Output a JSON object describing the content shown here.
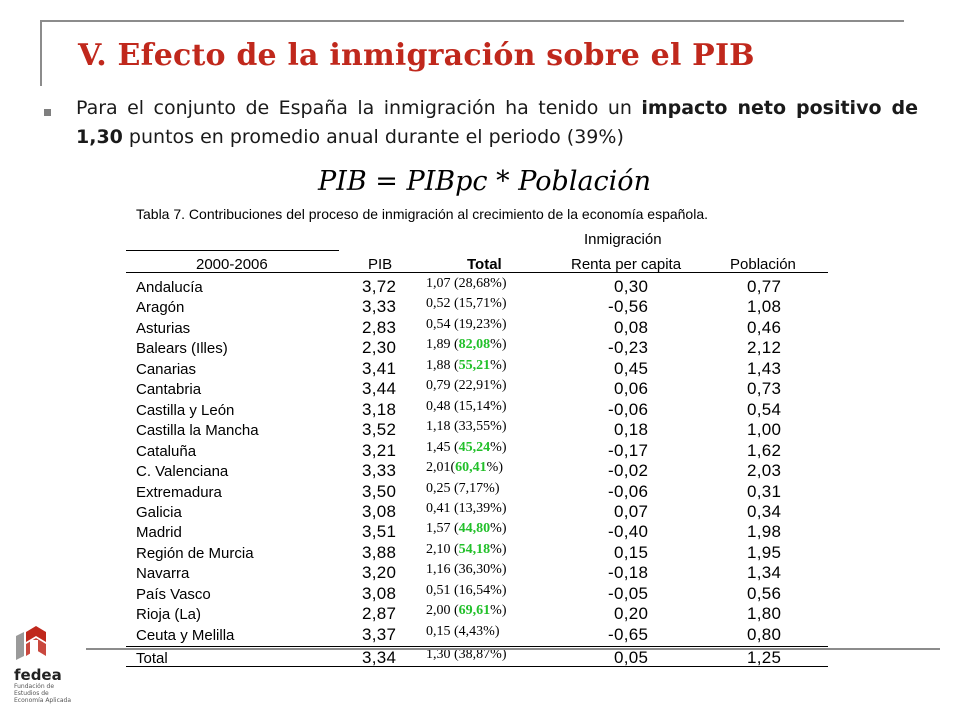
{
  "slide": {
    "title": "V. Efecto de la inmigración sobre el PIB",
    "bullet_pre": "Para el conjunto de España la inmigración ha tenido un ",
    "bullet_bold": "impacto neto positivo de 1,30",
    "bullet_post": " puntos en promedio anual durante el periodo (39%)",
    "formula": "PIB = PIBpc * Población"
  },
  "table": {
    "caption": "Tabla 7. Contribuciones del proceso de inmigración al crecimiento de la economía española.",
    "group_header": "Inmigración",
    "headers": [
      "2000-2006",
      "PIB",
      "Total",
      "Renta per capita",
      "Población"
    ],
    "rows": [
      {
        "region": "Andalucía",
        "pib": "3,72",
        "total_val": "1,07",
        "total_pct": "28,68",
        "renta": "0,30",
        "poblacion": "0,77",
        "hl": false,
        "total_sep": " ("
      },
      {
        "region": "Aragón",
        "pib": "3,33",
        "total_val": "0,52",
        "total_pct": "15,71",
        "renta": "-0,56",
        "poblacion": "1,08",
        "hl": false,
        "total_sep": " ("
      },
      {
        "region": "Asturias",
        "pib": "2,83",
        "total_val": "0,54",
        "total_pct": "19,23",
        "renta": "0,08",
        "poblacion": "0,46",
        "hl": false,
        "total_sep": " ("
      },
      {
        "region": "Balears (Illes)",
        "pib": "2,30",
        "total_val": "1,89",
        "total_pct": "82,08",
        "renta": "-0,23",
        "poblacion": "2,12",
        "hl": true,
        "total_sep": " ("
      },
      {
        "region": "Canarias",
        "pib": "3,41",
        "total_val": "1,88",
        "total_pct": "55,21",
        "renta": "0,45",
        "poblacion": "1,43",
        "hl": true,
        "total_sep": " ("
      },
      {
        "region": "Cantabria",
        "pib": "3,44",
        "total_val": "0,79",
        "total_pct": "22,91",
        "renta": "0,06",
        "poblacion": "0,73",
        "hl": false,
        "total_sep": " ("
      },
      {
        "region": "Castilla y León",
        "pib": "3,18",
        "total_val": "0,48",
        "total_pct": "15,14",
        "renta": "-0,06",
        "poblacion": "0,54",
        "hl": false,
        "total_sep": " ("
      },
      {
        "region": "Castilla la Mancha",
        "pib": "3,52",
        "total_val": "1,18",
        "total_pct": "33,55",
        "renta": "0,18",
        "poblacion": "1,00",
        "hl": false,
        "total_sep": " ("
      },
      {
        "region": "Cataluña",
        "pib": "3,21",
        "total_val": "1,45",
        "total_pct": "45,24",
        "renta": "-0,17",
        "poblacion": "1,62",
        "hl": true,
        "total_sep": " ("
      },
      {
        "region": "C. Valenciana",
        "pib": "3,33",
        "total_val": "2,01",
        "total_pct": "60,41",
        "renta": "-0,02",
        "poblacion": "2,03",
        "hl": true,
        "total_sep": "("
      },
      {
        "region": "Extremadura",
        "pib": "3,50",
        "total_val": "0,25",
        "total_pct": "7,17",
        "renta": "-0,06",
        "poblacion": "0,31",
        "hl": false,
        "total_sep": " ("
      },
      {
        "region": "Galicia",
        "pib": "3,08",
        "total_val": "0,41",
        "total_pct": "13,39",
        "renta": "0,07",
        "poblacion": "0,34",
        "hl": false,
        "total_sep": " ("
      },
      {
        "region": "Madrid",
        "pib": "3,51",
        "total_val": "1,57",
        "total_pct": "44,80",
        "renta": "-0,40",
        "poblacion": "1,98",
        "hl": true,
        "total_sep": " ("
      },
      {
        "region": "Región de Murcia",
        "pib": "3,88",
        "total_val": "2,10",
        "total_pct": "54,18",
        "renta": "0,15",
        "poblacion": "1,95",
        "hl": true,
        "total_sep": " ("
      },
      {
        "region": "Navarra",
        "pib": "3,20",
        "total_val": "1,16",
        "total_pct": "36,30",
        "renta": "-0,18",
        "poblacion": "1,34",
        "hl": false,
        "total_sep": " ("
      },
      {
        "region": "País Vasco",
        "pib": "3,08",
        "total_val": "0,51",
        "total_pct": "16,54",
        "renta": "-0,05",
        "poblacion": "0,56",
        "hl": false,
        "total_sep": " ("
      },
      {
        "region": "Rioja (La)",
        "pib": "2,87",
        "total_val": "2,00",
        "total_pct": "69,61",
        "renta": "0,20",
        "poblacion": "1,80",
        "hl": true,
        "total_sep": " ("
      },
      {
        "region": "Ceuta y Melilla",
        "pib": "3,37",
        "total_val": "0,15",
        "total_pct": "4,43",
        "renta": "-0,65",
        "poblacion": "0,80",
        "hl": false,
        "total_sep": " ("
      }
    ],
    "total_row": {
      "region": "Total",
      "pib": "3,34",
      "total_val": "1,30",
      "total_pct": "38,87",
      "renta": "0,05",
      "poblacion": "1,25",
      "hl": false,
      "total_sep": " ("
    }
  },
  "logo": {
    "name": "fedea",
    "sub1": "Fundación de",
    "sub2": "Estudios de",
    "sub3": "Economía Aplicada"
  },
  "colors": {
    "title": "#c0281c",
    "highlight": "#22c02a",
    "frame": "#8c8c8c"
  }
}
